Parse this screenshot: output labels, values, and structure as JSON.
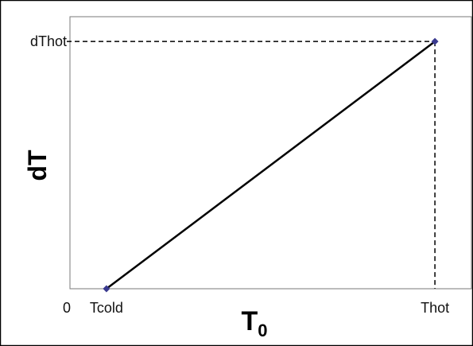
{
  "chart_data": {
    "type": "line",
    "xlabel": "T",
    "xlabel_subscript": "0",
    "ylabel": "dT",
    "x_tick_labels": [
      "0",
      "Tcold",
      "Thot"
    ],
    "y_tick_labels": [
      "dThot"
    ],
    "x_ticks_values": [
      0,
      0.1,
      1.0
    ],
    "y_ticks_values": [
      1.0
    ],
    "xlim": [
      0,
      1.1
    ],
    "ylim": [
      0,
      1.1
    ],
    "series": [
      {
        "points": [
          {
            "x": 0.1,
            "y": 0
          },
          {
            "x": 1.0,
            "y": 1.0
          }
        ],
        "color": "#000000",
        "marker_color": "#3a3a8f"
      }
    ],
    "reference_lines": {
      "from_point": {
        "x": 1.0,
        "y": 1.0
      },
      "style": "dashed"
    },
    "grid": false
  },
  "colors": {
    "frame_outer": "#000000",
    "plot_border": "#7a7a7a",
    "line": "#000000",
    "marker": "#3a3a8f"
  }
}
